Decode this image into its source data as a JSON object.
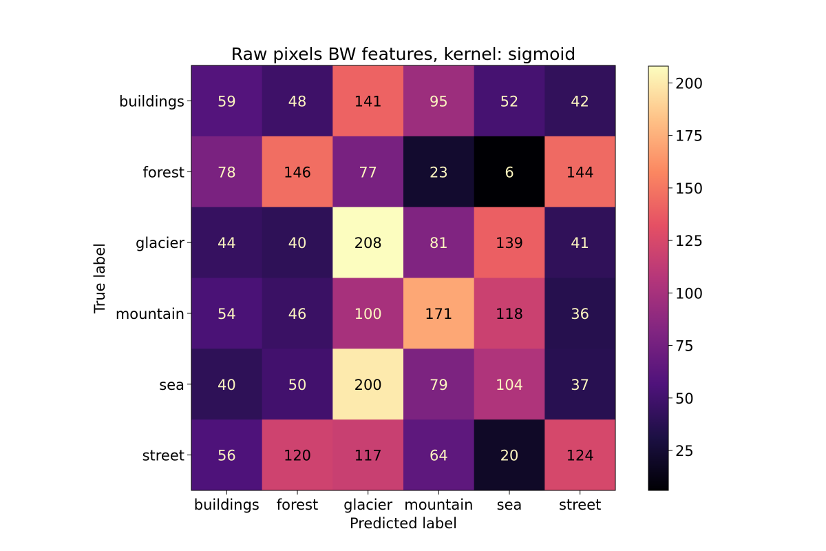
{
  "chart_data": {
    "type": "heatmap",
    "title": "Raw pixels BW features, kernel: sigmoid",
    "xlabel": "Predicted label",
    "ylabel": "True label",
    "x_categories": [
      "buildings",
      "forest",
      "glacier",
      "mountain",
      "sea",
      "street"
    ],
    "y_categories": [
      "buildings",
      "forest",
      "glacier",
      "mountain",
      "sea",
      "street"
    ],
    "values": [
      [
        59,
        48,
        141,
        95,
        52,
        42
      ],
      [
        78,
        146,
        77,
        23,
        6,
        144
      ],
      [
        44,
        40,
        208,
        81,
        139,
        41
      ],
      [
        54,
        46,
        100,
        171,
        118,
        36
      ],
      [
        40,
        50,
        200,
        79,
        104,
        37
      ],
      [
        56,
        120,
        117,
        64,
        20,
        124
      ]
    ],
    "colormap": "magma",
    "colorbar": {
      "range": [
        6,
        208
      ],
      "ticks": [
        25,
        50,
        75,
        100,
        125,
        150,
        175,
        200
      ]
    },
    "annotation_colors": {
      "dark_bg": "#fcf5c0",
      "light_bg": "#000000"
    }
  }
}
